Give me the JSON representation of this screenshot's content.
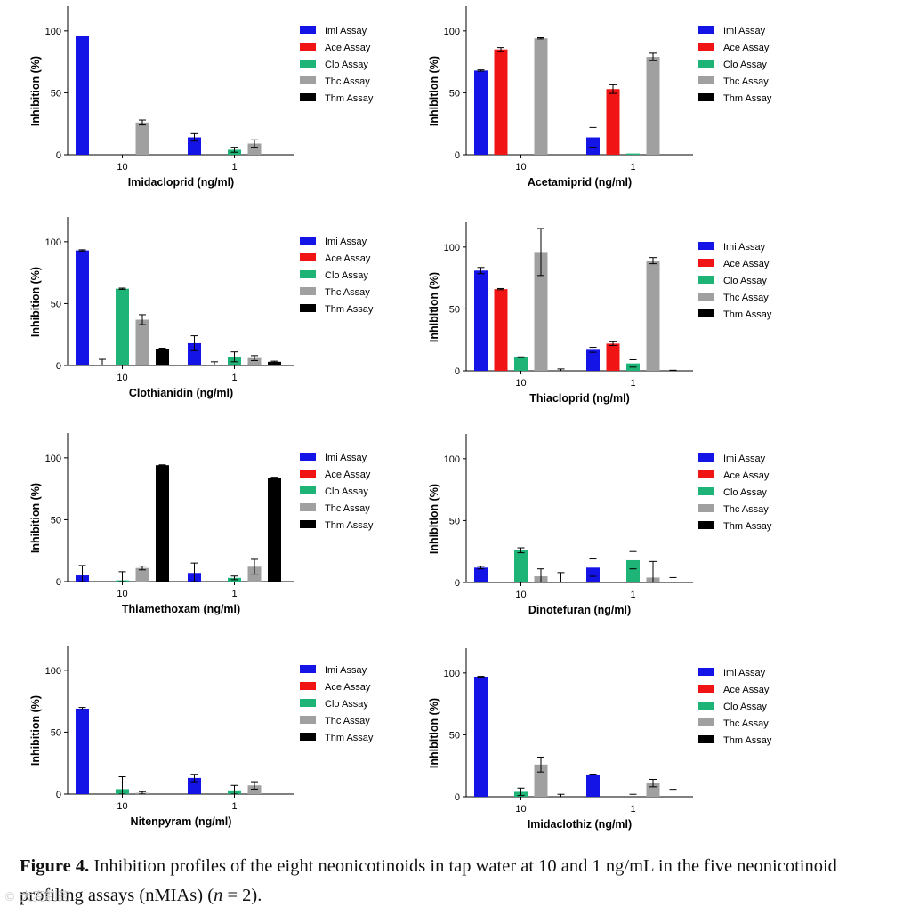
{
  "colors": {
    "Imi Assay": "#1414e6",
    "Ace Assay": "#f01414",
    "Clo Assay": "#1eb478",
    "Thc Assay": "#a0a0a0",
    "Thm Assay": "#000000"
  },
  "chart_data": [
    {
      "type": "bar",
      "xlabel": "Imidacloprid (ng/ml)",
      "ylabel": "Inhibition (%)",
      "ylim": [
        0,
        120
      ],
      "yticks": [
        0,
        50,
        100
      ],
      "categories": [
        "10",
        "1"
      ],
      "legend": [
        "Imi Assay",
        "Ace Assay",
        "Clo Assay",
        "Thc Assay",
        "Thm Assay"
      ],
      "series": [
        {
          "name": "Imi Assay",
          "values": [
            96,
            14
          ],
          "errors": [
            0,
            3
          ]
        },
        {
          "name": "Ace Assay",
          "values": [
            0,
            0
          ],
          "errors": [
            0,
            0
          ]
        },
        {
          "name": "Clo Assay",
          "values": [
            0,
            4
          ],
          "errors": [
            0,
            2
          ]
        },
        {
          "name": "Thc Assay",
          "values": [
            26,
            9
          ],
          "errors": [
            2,
            3
          ]
        },
        {
          "name": "Thm Assay",
          "values": [
            0,
            0
          ],
          "errors": [
            0,
            0
          ]
        }
      ]
    },
    {
      "type": "bar",
      "xlabel": "Acetamiprid (ng/ml)",
      "ylabel": "Inhibition (%)",
      "ylim": [
        0,
        120
      ],
      "yticks": [
        0,
        50,
        100
      ],
      "categories": [
        "10",
        "1"
      ],
      "legend": [
        "Imi Assay",
        "Ace Assay",
        "Clo Assay",
        "Thc Assay",
        "Thm Assay"
      ],
      "series": [
        {
          "name": "Imi Assay",
          "values": [
            68,
            14
          ],
          "errors": [
            0.5,
            8
          ]
        },
        {
          "name": "Ace Assay",
          "values": [
            85,
            53
          ],
          "errors": [
            1.5,
            3.5
          ]
        },
        {
          "name": "Clo Assay",
          "values": [
            0,
            1
          ],
          "errors": [
            0,
            0
          ]
        },
        {
          "name": "Thc Assay",
          "values": [
            94,
            79
          ],
          "errors": [
            0.5,
            3
          ]
        },
        {
          "name": "Thm Assay",
          "values": [
            0,
            0
          ],
          "errors": [
            0,
            0
          ]
        }
      ]
    },
    {
      "type": "bar",
      "xlabel": "Clothianidin (ng/ml)",
      "ylabel": "Inhibition (%)",
      "ylim": [
        0,
        120
      ],
      "yticks": [
        0,
        50,
        100
      ],
      "categories": [
        "10",
        "1"
      ],
      "legend": [
        "Imi Assay",
        "Ace Assay",
        "Clo Assay",
        "Thc Assay",
        "Thm Assay"
      ],
      "series": [
        {
          "name": "Imi Assay",
          "values": [
            93,
            18
          ],
          "errors": [
            0.5,
            6
          ]
        },
        {
          "name": "Ace Assay",
          "values": [
            0,
            0
          ],
          "errors": [
            5,
            3
          ]
        },
        {
          "name": "Clo Assay",
          "values": [
            62,
            7
          ],
          "errors": [
            0.5,
            4
          ]
        },
        {
          "name": "Thc Assay",
          "values": [
            37,
            6
          ],
          "errors": [
            4,
            2
          ]
        },
        {
          "name": "Thm Assay",
          "values": [
            13,
            3
          ],
          "errors": [
            1,
            0.5
          ]
        }
      ]
    },
    {
      "type": "bar",
      "xlabel": "Thiacloprid (ng/ml)",
      "ylabel": "Inhibition (%)",
      "ylim": [
        0,
        120
      ],
      "yticks": [
        0,
        50,
        100
      ],
      "categories": [
        "10",
        "1"
      ],
      "legend": [
        "Imi Assay",
        "Ace Assay",
        "Clo Assay",
        "Thc Assay",
        "Thm Assay"
      ],
      "series": [
        {
          "name": "Imi Assay",
          "values": [
            81,
            17
          ],
          "errors": [
            2.5,
            2
          ]
        },
        {
          "name": "Ace Assay",
          "values": [
            66,
            22
          ],
          "errors": [
            0.5,
            1.5
          ]
        },
        {
          "name": "Clo Assay",
          "values": [
            11,
            6
          ],
          "errors": [
            0.3,
            3
          ]
        },
        {
          "name": "Thc Assay",
          "values": [
            96,
            89
          ],
          "errors": [
            19,
            2.5
          ]
        },
        {
          "name": "Thm Assay",
          "values": [
            0,
            0
          ],
          "errors": [
            1.5,
            0.5
          ]
        }
      ]
    },
    {
      "type": "bar",
      "xlabel": "Thiamethoxam (ng/ml)",
      "ylabel": "Inhibition (%)",
      "ylim": [
        0,
        120
      ],
      "yticks": [
        0,
        50,
        100
      ],
      "categories": [
        "10",
        "1"
      ],
      "legend": [
        "Imi Assay",
        "Ace Assay",
        "Clo Assay",
        "Thc Assay",
        "Thm Assay"
      ],
      "series": [
        {
          "name": "Imi Assay",
          "values": [
            5,
            7
          ],
          "errors": [
            8,
            8
          ]
        },
        {
          "name": "Ace Assay",
          "values": [
            0,
            0
          ],
          "errors": [
            0,
            0
          ]
        },
        {
          "name": "Clo Assay",
          "values": [
            1,
            3
          ],
          "errors": [
            7,
            1.5
          ]
        },
        {
          "name": "Thc Assay",
          "values": [
            11,
            12
          ],
          "errors": [
            1.5,
            6
          ]
        },
        {
          "name": "Thm Assay",
          "values": [
            94,
            84
          ],
          "errors": [
            0.3,
            0.3
          ]
        }
      ]
    },
    {
      "type": "bar",
      "xlabel": "Dinotefuran (ng/ml)",
      "ylabel": "Inhibition (%)",
      "ylim": [
        0,
        120
      ],
      "yticks": [
        0,
        50,
        100
      ],
      "categories": [
        "10",
        "1"
      ],
      "legend": [
        "Imi Assay",
        "Ace Assay",
        "Clo Assay",
        "Thc Assay",
        "Thm Assay"
      ],
      "series": [
        {
          "name": "Imi Assay",
          "values": [
            12,
            12
          ],
          "errors": [
            1,
            7
          ]
        },
        {
          "name": "Ace Assay",
          "values": [
            0,
            0
          ],
          "errors": [
            0,
            0
          ]
        },
        {
          "name": "Clo Assay",
          "values": [
            26,
            18
          ],
          "errors": [
            2,
            7
          ]
        },
        {
          "name": "Thc Assay",
          "values": [
            5,
            4
          ],
          "errors": [
            6,
            13
          ]
        },
        {
          "name": "Thm Assay",
          "values": [
            0,
            0
          ],
          "errors": [
            8,
            4
          ]
        }
      ]
    },
    {
      "type": "bar",
      "xlabel": "Nitenpyram (ng/ml)",
      "ylabel": "Inhibition (%)",
      "ylim": [
        0,
        120
      ],
      "yticks": [
        0,
        50,
        100
      ],
      "categories": [
        "10",
        "1"
      ],
      "legend": [
        "Imi Assay",
        "Ace Assay",
        "Clo Assay",
        "Thc Assay",
        "Thm Assay"
      ],
      "series": [
        {
          "name": "Imi Assay",
          "values": [
            69,
            13
          ],
          "errors": [
            1,
            3
          ]
        },
        {
          "name": "Ace Assay",
          "values": [
            0,
            0
          ],
          "errors": [
            0,
            0
          ]
        },
        {
          "name": "Clo Assay",
          "values": [
            4,
            3
          ],
          "errors": [
            10,
            4
          ]
        },
        {
          "name": "Thc Assay",
          "values": [
            1,
            7
          ],
          "errors": [
            1,
            3
          ]
        },
        {
          "name": "Thm Assay",
          "values": [
            0,
            0
          ],
          "errors": [
            0,
            0
          ]
        }
      ]
    },
    {
      "type": "bar",
      "xlabel": "Imidaclothiz (ng/ml)",
      "ylabel": "Inhibition (%)",
      "ylim": [
        0,
        120
      ],
      "yticks": [
        0,
        50,
        100
      ],
      "categories": [
        "10",
        "1"
      ],
      "legend": [
        "Imi Assay",
        "Ace Assay",
        "Clo Assay",
        "Thc Assay",
        "Thm Assay"
      ],
      "series": [
        {
          "name": "Imi Assay",
          "values": [
            97,
            18
          ],
          "errors": [
            0.3,
            0.3
          ]
        },
        {
          "name": "Ace Assay",
          "values": [
            0,
            0
          ],
          "errors": [
            0,
            0
          ]
        },
        {
          "name": "Clo Assay",
          "values": [
            4,
            0
          ],
          "errors": [
            3,
            2
          ]
        },
        {
          "name": "Thc Assay",
          "values": [
            26,
            11
          ],
          "errors": [
            6,
            3
          ]
        },
        {
          "name": "Thm Assay",
          "values": [
            0,
            0
          ],
          "errors": [
            2,
            6
          ]
        }
      ]
    }
  ],
  "caption": {
    "label": "Figure 4.",
    "text_before": " Inhibition profiles of the eight neonicotinoids in tap water at 10 and 1 ng/mL in the five neonicotinoid profiling assays (nMIAs) (",
    "n_symbol": "n",
    "text_after": " = 2)."
  },
  "watermark": "© 大麦制药"
}
